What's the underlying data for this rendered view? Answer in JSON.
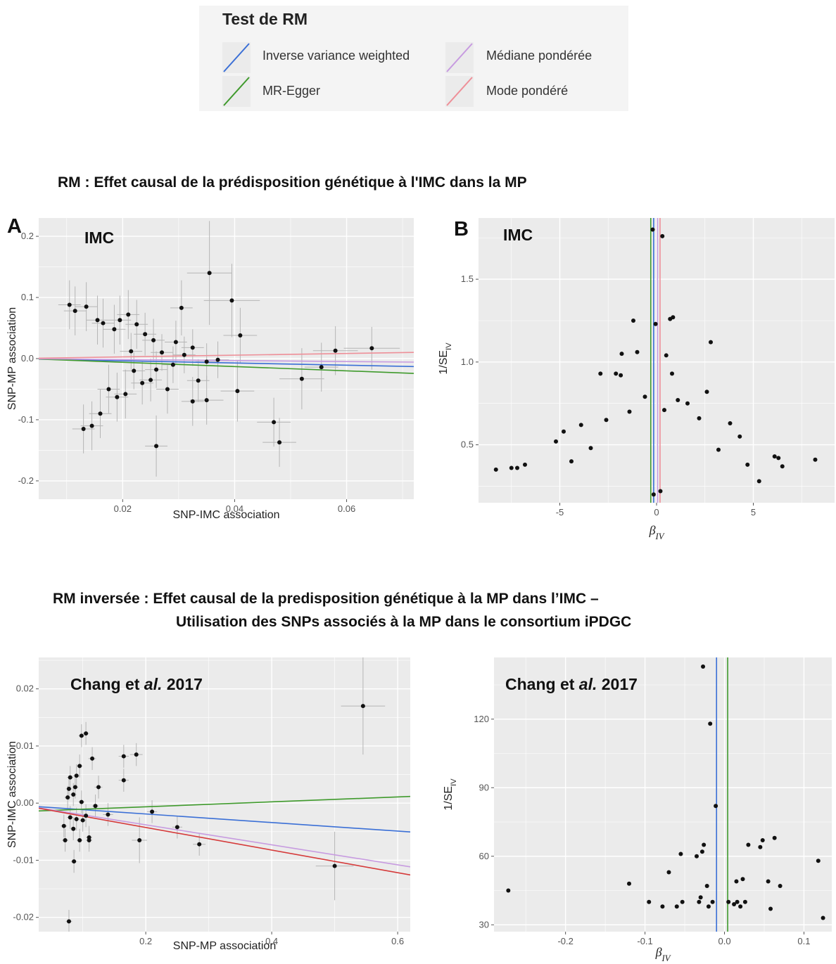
{
  "legend": {
    "title": "Test de RM",
    "items": [
      {
        "label": "Inverse variance weighted",
        "color": "#3a6fd6"
      },
      {
        "label": "MR-Egger",
        "color": "#3f9a2c"
      },
      {
        "label": "Médiane pondérée",
        "color": "#c79be0"
      },
      {
        "label": "Mode pondéré",
        "color": "#ee8f98"
      }
    ]
  },
  "sections": {
    "forward_title": "RM : Effet causal de la prédisposition génétique à l'IMC dans la MP",
    "reverse_title_line1": "RM inversée : Effet causal de la predisposition génétique à la MP dans l’IMC –",
    "reverse_title_line2": "Utilisation des SNPs associés à la MP dans le consortium iPDGC"
  },
  "panel_letters": {
    "A": "A",
    "B": "B"
  },
  "chart_data": [
    {
      "id": "A",
      "type": "scatter",
      "inset_label": "IMC",
      "xlabel": "SNP-IMC association",
      "ylabel": "SNP-MP association",
      "xlim": [
        0.005,
        0.072
      ],
      "ylim": [
        -0.23,
        0.23
      ],
      "xticks": [
        0.02,
        0.04,
        0.06
      ],
      "xtick_labels": [
        "0.02",
        "0.04",
        "0.06"
      ],
      "yticks": [
        -0.2,
        -0.1,
        0.0,
        0.1,
        0.2
      ],
      "ytick_labels": [
        "-0.2",
        "-0.1",
        "0.0",
        "0.1",
        "0.2"
      ],
      "grid": true,
      "lines": [
        {
          "name": "Inverse variance weighted",
          "slope": -0.18,
          "intercept": 0,
          "color": "#3a6fd6"
        },
        {
          "name": "MR-Egger",
          "slope": -0.35,
          "intercept": 0.001,
          "color": "#3f9a2c"
        },
        {
          "name": "Médiane pondérée",
          "slope": -0.08,
          "intercept": 0,
          "color": "#c79be0"
        },
        {
          "name": "Mode pondéré",
          "slope": 0.14,
          "intercept": 0,
          "color": "#ee8f98"
        }
      ],
      "points": [
        [
          0.0355,
          0.14,
          0.004,
          0.085
        ],
        [
          0.0395,
          0.095,
          0.005,
          0.06
        ],
        [
          0.041,
          0.038,
          0.003,
          0.045
        ],
        [
          0.0405,
          -0.053,
          0.003,
          0.05
        ],
        [
          0.0305,
          0.083,
          0.002,
          0.045
        ],
        [
          0.026,
          -0.143,
          0.002,
          0.05
        ],
        [
          0.047,
          -0.104,
          0.003,
          0.04
        ],
        [
          0.048,
          -0.137,
          0.003,
          0.04
        ],
        [
          0.052,
          -0.033,
          0.004,
          0.05
        ],
        [
          0.0555,
          -0.014,
          0.003,
          0.04
        ],
        [
          0.058,
          0.013,
          0.004,
          0.04
        ],
        [
          0.0645,
          0.017,
          0.005,
          0.035
        ],
        [
          0.035,
          -0.068,
          0.003,
          0.04
        ],
        [
          0.0325,
          -0.07,
          0.002,
          0.04
        ],
        [
          0.0335,
          -0.036,
          0.002,
          0.035
        ],
        [
          0.028,
          -0.05,
          0.002,
          0.04
        ],
        [
          0.0295,
          0.027,
          0.002,
          0.035
        ],
        [
          0.031,
          0.006,
          0.002,
          0.03
        ],
        [
          0.035,
          -0.005,
          0.002,
          0.03
        ],
        [
          0.037,
          -0.002,
          0.002,
          0.03
        ],
        [
          0.0255,
          0.03,
          0.002,
          0.035
        ],
        [
          0.024,
          0.04,
          0.002,
          0.035
        ],
        [
          0.0225,
          0.056,
          0.002,
          0.04
        ],
        [
          0.021,
          0.072,
          0.002,
          0.04
        ],
        [
          0.0195,
          0.063,
          0.002,
          0.04
        ],
        [
          0.0185,
          0.048,
          0.002,
          0.04
        ],
        [
          0.025,
          -0.035,
          0.002,
          0.035
        ],
        [
          0.0235,
          -0.04,
          0.002,
          0.035
        ],
        [
          0.022,
          -0.02,
          0.002,
          0.03
        ],
        [
          0.0205,
          -0.058,
          0.002,
          0.04
        ],
        [
          0.019,
          -0.063,
          0.002,
          0.04
        ],
        [
          0.0175,
          -0.05,
          0.002,
          0.04
        ],
        [
          0.0165,
          0.058,
          0.002,
          0.04
        ],
        [
          0.0155,
          0.063,
          0.002,
          0.04
        ],
        [
          0.016,
          -0.09,
          0.002,
          0.04
        ],
        [
          0.0145,
          -0.11,
          0.002,
          0.04
        ],
        [
          0.013,
          -0.115,
          0.002,
          0.04
        ],
        [
          0.0105,
          0.088,
          0.002,
          0.04
        ],
        [
          0.0115,
          0.078,
          0.002,
          0.04
        ],
        [
          0.0135,
          0.085,
          0.002,
          0.04
        ],
        [
          0.027,
          0.01,
          0.002,
          0.03
        ],
        [
          0.029,
          -0.01,
          0.002,
          0.03
        ],
        [
          0.0215,
          0.012,
          0.002,
          0.03
        ],
        [
          0.026,
          -0.018,
          0.002,
          0.03
        ],
        [
          0.0325,
          0.018,
          0.002,
          0.03
        ]
      ]
    },
    {
      "id": "B",
      "type": "scatter",
      "inset_label": "IMC",
      "xlabel": "βIV",
      "ylabel": "1/SEIV",
      "xlim": [
        -9.2,
        9.2
      ],
      "ylim": [
        0.15,
        1.87
      ],
      "xticks": [
        -5,
        0,
        5
      ],
      "xtick_labels": [
        "-5",
        "0",
        "5"
      ],
      "yticks": [
        0.5,
        1.0,
        1.5
      ],
      "ytick_labels": [
        "0.5",
        "1.0",
        "1.5"
      ],
      "grid": true,
      "vlines": [
        {
          "name": "MR-Egger",
          "x": -0.3,
          "color": "#3f9a2c"
        },
        {
          "name": "Inverse variance weighted",
          "x": -0.15,
          "color": "#3a6fd6"
        },
        {
          "name": "Médiane pondérée",
          "x": 0.05,
          "color": "#c79be0"
        },
        {
          "name": "Mode pondéré",
          "x": 0.18,
          "color": "#ee8f98"
        }
      ],
      "points": [
        [
          -0.2,
          1.8
        ],
        [
          0.3,
          1.76
        ],
        [
          -1.2,
          1.25
        ],
        [
          0.7,
          1.26
        ],
        [
          0.85,
          1.27
        ],
        [
          -0.05,
          1.23
        ],
        [
          2.8,
          1.12
        ],
        [
          -1.8,
          1.05
        ],
        [
          -1.0,
          1.06
        ],
        [
          0.5,
          1.04
        ],
        [
          -2.9,
          0.93
        ],
        [
          -2.1,
          0.93
        ],
        [
          -1.85,
          0.92
        ],
        [
          0.8,
          0.93
        ],
        [
          2.6,
          0.82
        ],
        [
          -8.3,
          0.35
        ],
        [
          -7.5,
          0.36
        ],
        [
          -7.2,
          0.36
        ],
        [
          -6.8,
          0.38
        ],
        [
          8.2,
          0.41
        ],
        [
          6.5,
          0.37
        ],
        [
          6.3,
          0.42
        ],
        [
          6.1,
          0.43
        ],
        [
          5.3,
          0.28
        ],
        [
          -0.15,
          0.2
        ],
        [
          0.2,
          0.22
        ],
        [
          -5.2,
          0.52
        ],
        [
          -4.8,
          0.58
        ],
        [
          -3.9,
          0.62
        ],
        [
          3.8,
          0.63
        ],
        [
          4.3,
          0.55
        ],
        [
          -1.4,
          0.7
        ],
        [
          1.6,
          0.75
        ],
        [
          1.1,
          0.77
        ],
        [
          -0.6,
          0.79
        ],
        [
          0.4,
          0.71
        ],
        [
          -2.6,
          0.65
        ],
        [
          2.2,
          0.66
        ],
        [
          -3.4,
          0.48
        ],
        [
          3.2,
          0.47
        ],
        [
          -4.4,
          0.4
        ],
        [
          4.7,
          0.38
        ]
      ]
    },
    {
      "id": "C",
      "type": "scatter",
      "inset_label": "Chang et al. 2017",
      "xlabel": "SNP-MP association",
      "ylabel": "SNP-IMC association",
      "xlim": [
        0.03,
        0.62
      ],
      "ylim": [
        -0.0225,
        0.0255
      ],
      "xticks": [
        0.2,
        0.4,
        0.6
      ],
      "xtick_labels": [
        "0.2",
        "0.4",
        "0.6"
      ],
      "yticks": [
        -0.02,
        -0.01,
        0.0,
        0.01,
        0.02
      ],
      "ytick_labels": [
        "-0.02",
        "-0.01",
        "0.00",
        "0.01",
        "0.02"
      ],
      "grid": true,
      "lines": [
        {
          "name": "Inverse variance weighted",
          "slope": -0.0075,
          "intercept": -0.0004,
          "color": "#3a6fd6"
        },
        {
          "name": "MR-Egger",
          "slope": 0.0043,
          "intercept": -0.0015,
          "color": "#3f9a2c"
        },
        {
          "name": "Médiane pondérée",
          "slope": -0.0175,
          "intercept": -0.0003,
          "color": "#c79be0"
        },
        {
          "name": "Mode pondéré",
          "slope": -0.0198,
          "intercept": -0.0003,
          "color": "#d53a3a"
        }
      ],
      "points": [
        [
          0.545,
          0.017,
          0.035,
          0.0085
        ],
        [
          0.5,
          -0.011,
          0.03,
          0.006
        ],
        [
          0.285,
          -0.0072,
          0.01,
          0.002
        ],
        [
          0.25,
          -0.0042,
          0.008,
          0.002
        ],
        [
          0.21,
          -0.0015,
          0.008,
          0.002
        ],
        [
          0.19,
          -0.0065,
          0.012,
          0.004
        ],
        [
          0.185,
          0.0085,
          0.01,
          0.002
        ],
        [
          0.165,
          0.0082,
          0.008,
          0.002
        ],
        [
          0.165,
          0.004,
          0.008,
          0.002
        ],
        [
          0.14,
          -0.002,
          0.008,
          0.002
        ],
        [
          0.125,
          0.0028,
          0.006,
          0.002
        ],
        [
          0.115,
          0.0078,
          0.006,
          0.002
        ],
        [
          0.11,
          -0.006,
          0.005,
          0.002
        ],
        [
          0.105,
          0.0122,
          0.005,
          0.002
        ],
        [
          0.098,
          0.0118,
          0.005,
          0.002
        ],
        [
          0.095,
          0.0065,
          0.005,
          0.002
        ],
        [
          0.09,
          0.0048,
          0.005,
          0.002
        ],
        [
          0.088,
          0.0028,
          0.005,
          0.002
        ],
        [
          0.085,
          0.0015,
          0.005,
          0.002
        ],
        [
          0.08,
          0.0045,
          0.005,
          0.002
        ],
        [
          0.078,
          0.0025,
          0.005,
          0.002
        ],
        [
          0.076,
          0.001,
          0.005,
          0.002
        ],
        [
          0.072,
          -0.0065,
          0.005,
          0.002
        ],
        [
          0.07,
          -0.004,
          0.005,
          0.002
        ],
        [
          0.08,
          -0.0025,
          0.005,
          0.002
        ],
        [
          0.085,
          -0.0045,
          0.005,
          0.002
        ],
        [
          0.09,
          -0.0028,
          0.005,
          0.002
        ],
        [
          0.095,
          -0.0065,
          0.005,
          0.002
        ],
        [
          0.1,
          -0.003,
          0.005,
          0.002
        ],
        [
          0.105,
          -0.0022,
          0.005,
          0.002
        ],
        [
          0.11,
          -0.0065,
          0.005,
          0.002
        ],
        [
          0.086,
          -0.0102,
          0.005,
          0.002
        ],
        [
          0.078,
          -0.0207,
          0.005,
          0.002
        ],
        [
          0.098,
          0.0002,
          0.005,
          0.002
        ],
        [
          0.12,
          -0.0005,
          0.005,
          0.002
        ]
      ]
    },
    {
      "id": "D",
      "type": "scatter",
      "inset_label": "Chang et al. 2017",
      "xlabel": "βIV",
      "ylabel": "1/SEIV",
      "xlim": [
        -0.29,
        0.135
      ],
      "ylim": [
        27,
        147
      ],
      "xticks": [
        -0.2,
        -0.1,
        0.0,
        0.1
      ],
      "xtick_labels": [
        "-0.2",
        "-0.1",
        "0.0",
        "0.1"
      ],
      "yticks": [
        30,
        60,
        90,
        120
      ],
      "ytick_labels": [
        "30",
        "60",
        "90",
        "120"
      ],
      "grid": true,
      "vlines": [
        {
          "name": "Inverse variance weighted",
          "x": -0.01,
          "color": "#3a6fd6"
        },
        {
          "name": "MR-Egger",
          "x": 0.004,
          "color": "#3f9a2c"
        }
      ],
      "points": [
        [
          -0.027,
          143
        ],
        [
          -0.018,
          118
        ],
        [
          -0.011,
          82
        ],
        [
          -0.272,
          45
        ],
        [
          -0.12,
          48
        ],
        [
          -0.095,
          40
        ],
        [
          -0.078,
          38
        ],
        [
          -0.07,
          53
        ],
        [
          -0.06,
          38
        ],
        [
          -0.055,
          61
        ],
        [
          -0.053,
          40
        ],
        [
          -0.035,
          60
        ],
        [
          -0.032,
          40
        ],
        [
          -0.03,
          42
        ],
        [
          -0.028,
          62
        ],
        [
          -0.026,
          65
        ],
        [
          -0.022,
          47
        ],
        [
          -0.02,
          38
        ],
        [
          -0.015,
          40
        ],
        [
          0.005,
          40
        ],
        [
          0.012,
          39
        ],
        [
          0.015,
          49
        ],
        [
          0.016,
          40
        ],
        [
          0.02,
          38
        ],
        [
          0.023,
          50
        ],
        [
          0.026,
          40
        ],
        [
          0.03,
          65
        ],
        [
          0.045,
          64
        ],
        [
          0.048,
          67
        ],
        [
          0.055,
          49
        ],
        [
          0.058,
          37
        ],
        [
          0.063,
          68
        ],
        [
          0.07,
          47
        ],
        [
          0.118,
          58
        ],
        [
          0.124,
          33
        ]
      ]
    }
  ]
}
